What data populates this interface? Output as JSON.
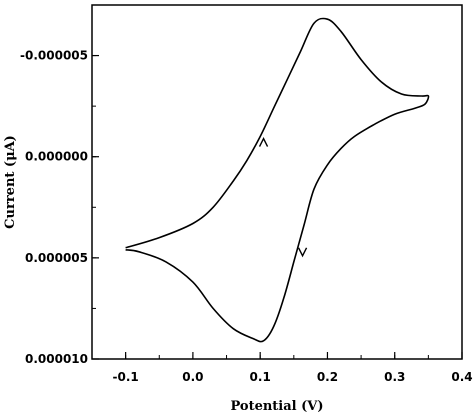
{
  "chart_data": {
    "type": "line",
    "title": "",
    "xlabel": "Potential (V)",
    "ylabel": "Current (μA)",
    "xlim": [
      -0.15,
      0.4
    ],
    "ylim": [
      -7.5e-06,
      1e-05
    ],
    "y_inverted": true,
    "grid": false,
    "legend": "none",
    "x_ticks": [
      {
        "value": -0.1,
        "label": "-0.1"
      },
      {
        "value": 0.0,
        "label": "0.0"
      },
      {
        "value": 0.1,
        "label": "0.1"
      },
      {
        "value": 0.2,
        "label": "0.2"
      },
      {
        "value": 0.3,
        "label": "0.3"
      },
      {
        "value": 0.4,
        "label": "0.4"
      }
    ],
    "y_ticks": [
      {
        "value": -5e-06,
        "label": "-0.000005"
      },
      {
        "value": 0.0,
        "label": "0.000000"
      },
      {
        "value": 5e-06,
        "label": "0.000005"
      },
      {
        "value": 1e-05,
        "label": "0.000010"
      }
    ],
    "series": [
      {
        "color": "#000000",
        "x": [
          -0.1,
          -0.05,
          0.0,
          0.03,
          0.06,
          0.08,
          0.1,
          0.12,
          0.14,
          0.16,
          0.18,
          0.2,
          0.22,
          0.25,
          0.28,
          0.31,
          0.34,
          0.35,
          0.345,
          0.33,
          0.3,
          0.27,
          0.24,
          0.22,
          0.2,
          0.18,
          0.165,
          0.15,
          0.135,
          0.12,
          0.105,
          0.09,
          0.06,
          0.03,
          0.0,
          -0.04,
          -0.08,
          -0.1
        ],
        "y": [
          4.5e-06,
          4e-06,
          3.3e-06,
          2.5e-06,
          1.2e-06,
          2e-07,
          -1e-06,
          -2.4e-06,
          -3.8e-06,
          -5.2e-06,
          -6.6e-06,
          -6.8e-06,
          -6.2e-06,
          -4.8e-06,
          -3.7e-06,
          -3.1e-06,
          -3e-06,
          -3e-06,
          -2.6e-06,
          -2.4e-06,
          -2.1e-06,
          -1.6e-06,
          -1e-06,
          -4e-07,
          4e-07,
          1.6e-06,
          3.4e-06,
          5.2e-06,
          7e-06,
          8.4e-06,
          9.1e-06,
          9e-06,
          8.5e-06,
          7.5e-06,
          6.2e-06,
          5.2e-06,
          4.7e-06,
          4.6e-06
        ]
      }
    ],
    "arrows": [
      {
        "x": 0.105,
        "y": -6e-07,
        "direction": "up"
      },
      {
        "x": 0.163,
        "y": 4.6e-06,
        "direction": "down"
      }
    ]
  }
}
